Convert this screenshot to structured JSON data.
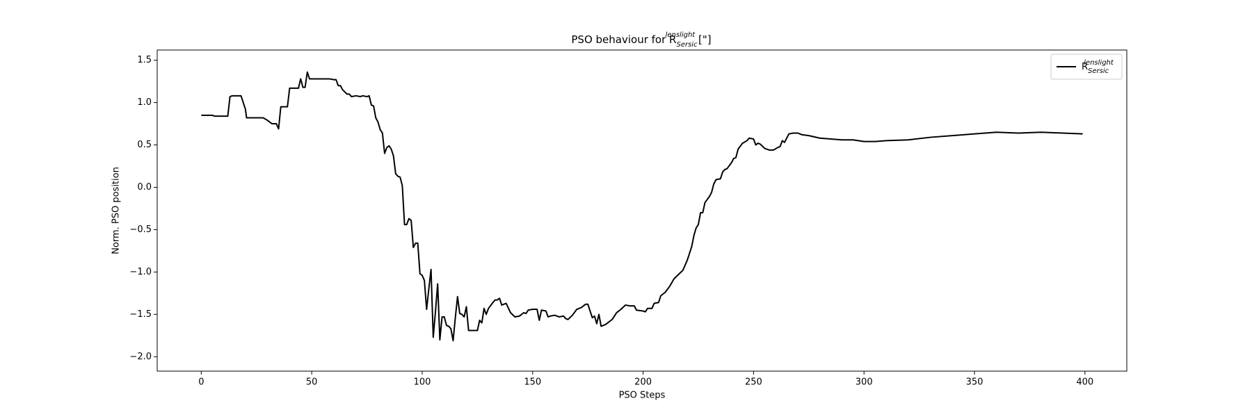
{
  "chart_data": {
    "type": "line",
    "title": "PSO behaviour for R",
    "title_sup": "lenslight",
    "title_sub": "Sersic",
    "title_suffix": " [\"]",
    "x_label": "PSO Steps",
    "y_label": "Norm. PSO position",
    "xlim": [
      -19.95,
      418.95
    ],
    "ylim": [
      -2.17,
      1.62
    ],
    "xticks": [
      0,
      50,
      100,
      150,
      200,
      250,
      300,
      350,
      400
    ],
    "yticks": [
      {
        "value": -2.0,
        "label": "−2.0"
      },
      {
        "value": -1.5,
        "label": "−1.5"
      },
      {
        "value": -1.0,
        "label": "−1.0"
      },
      {
        "value": -0.5,
        "label": "−0.5"
      },
      {
        "value": 0.0,
        "label": "0.0"
      },
      0.5,
      {
        "value": 1.0,
        "label": "1.0"
      },
      1.5
    ],
    "legend": "upper right",
    "x": [
      0,
      5,
      6,
      12,
      13,
      14,
      18,
      20,
      20.5,
      28,
      30,
      32,
      34,
      35,
      36,
      39,
      40,
      44,
      45,
      46,
      47,
      48,
      49,
      55,
      58,
      60,
      61,
      62,
      63,
      64,
      66,
      67,
      68,
      70,
      72,
      73,
      75,
      76,
      77,
      78,
      79,
      80,
      81,
      82,
      83,
      84,
      85,
      86,
      87,
      88,
      89,
      90,
      91,
      92,
      93,
      94,
      95,
      96,
      97,
      98,
      99,
      100,
      101,
      102,
      103,
      104,
      105,
      106,
      107,
      108,
      109,
      110,
      111,
      112,
      113,
      114,
      115,
      116,
      117,
      118,
      119,
      120,
      121,
      125,
      126,
      127,
      128,
      129,
      130,
      132,
      133,
      134,
      135,
      136,
      138,
      140,
      142,
      144,
      146,
      147,
      148,
      150,
      152,
      153,
      154,
      156,
      157,
      158,
      160,
      162,
      164,
      165,
      166,
      168,
      170,
      172,
      174,
      175,
      176,
      177,
      178,
      179,
      180,
      181,
      183,
      186,
      187,
      188,
      190,
      192,
      194,
      196,
      197,
      200,
      201,
      202,
      204,
      205,
      207,
      208,
      210,
      212,
      214,
      216,
      218,
      220,
      222,
      223,
      224,
      225,
      226,
      227,
      228,
      230,
      231,
      232,
      233,
      235,
      236,
      237,
      238,
      240,
      241,
      242,
      243,
      245,
      247,
      248,
      250,
      251,
      252,
      253,
      255,
      257,
      259,
      261,
      262,
      263,
      264,
      266,
      268,
      270,
      272,
      275,
      280,
      285,
      290,
      295,
      300,
      305,
      310,
      320,
      330,
      340,
      350,
      360,
      370,
      380,
      390,
      399
    ],
    "series": [
      {
        "name": "R",
        "name_sup": "lenslight",
        "name_sub": "Sersic",
        "color": "#000000",
        "values": [
          0.85,
          0.85,
          0.84,
          0.84,
          1.07,
          1.08,
          1.08,
          0.92,
          0.82,
          0.82,
          0.79,
          0.75,
          0.75,
          0.69,
          0.95,
          0.95,
          1.17,
          1.17,
          1.28,
          1.18,
          1.18,
          1.36,
          1.28,
          1.28,
          1.28,
          1.27,
          1.27,
          1.2,
          1.2,
          1.15,
          1.1,
          1.1,
          1.07,
          1.08,
          1.07,
          1.08,
          1.07,
          1.08,
          0.97,
          0.96,
          0.82,
          0.77,
          0.68,
          0.64,
          0.4,
          0.47,
          0.49,
          0.45,
          0.37,
          0.16,
          0.13,
          0.12,
          0.02,
          -0.44,
          -0.44,
          -0.37,
          -0.39,
          -0.71,
          -0.66,
          -0.66,
          -1.02,
          -1.04,
          -1.1,
          -1.44,
          -1.2,
          -0.97,
          -1.77,
          -1.47,
          -1.14,
          -1.8,
          -1.53,
          -1.53,
          -1.63,
          -1.64,
          -1.67,
          -1.81,
          -1.54,
          -1.29,
          -1.49,
          -1.5,
          -1.53,
          -1.41,
          -1.69,
          -1.69,
          -1.57,
          -1.6,
          -1.43,
          -1.5,
          -1.43,
          -1.36,
          -1.33,
          -1.33,
          -1.31,
          -1.39,
          -1.37,
          -1.48,
          -1.53,
          -1.52,
          -1.48,
          -1.49,
          -1.45,
          -1.44,
          -1.44,
          -1.57,
          -1.45,
          -1.46,
          -1.53,
          -1.52,
          -1.51,
          -1.53,
          -1.52,
          -1.55,
          -1.56,
          -1.51,
          -1.44,
          -1.42,
          -1.38,
          -1.38,
          -1.46,
          -1.54,
          -1.52,
          -1.61,
          -1.5,
          -1.64,
          -1.62,
          -1.56,
          -1.52,
          -1.48,
          -1.44,
          -1.39,
          -1.4,
          -1.4,
          -1.45,
          -1.46,
          -1.47,
          -1.43,
          -1.43,
          -1.37,
          -1.36,
          -1.28,
          -1.24,
          -1.17,
          -1.08,
          -1.03,
          -0.98,
          -0.86,
          -0.7,
          -0.57,
          -0.48,
          -0.44,
          -0.3,
          -0.3,
          -0.18,
          -0.11,
          -0.06,
          0.04,
          0.09,
          0.1,
          0.18,
          0.21,
          0.22,
          0.29,
          0.34,
          0.35,
          0.45,
          0.52,
          0.55,
          0.58,
          0.57,
          0.5,
          0.52,
          0.51,
          0.46,
          0.44,
          0.44,
          0.47,
          0.48,
          0.55,
          0.53,
          0.63,
          0.64,
          0.64,
          0.62,
          0.61,
          0.58,
          0.57,
          0.56,
          0.56,
          0.54,
          0.54,
          0.55,
          0.56,
          0.59,
          0.61,
          0.63,
          0.65,
          0.64,
          0.65,
          0.64,
          0.63
        ]
      }
    ]
  }
}
